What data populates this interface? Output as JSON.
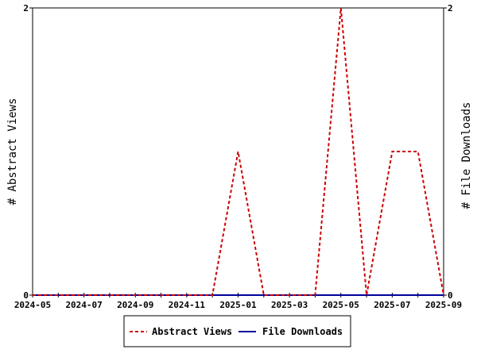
{
  "chart_data": {
    "type": "line",
    "x": [
      "2024-05",
      "2024-06",
      "2024-07",
      "2024-08",
      "2024-09",
      "2024-10",
      "2024-11",
      "2024-12",
      "2025-01",
      "2025-02",
      "2025-03",
      "2025-04",
      "2025-05",
      "2025-06",
      "2025-07",
      "2025-08",
      "2025-09"
    ],
    "x_tick_labels": [
      "2024-05",
      "2024-07",
      "2024-09",
      "2024-11",
      "2025-01",
      "2025-03",
      "2025-05",
      "2025-07",
      "2025-09"
    ],
    "series": [
      {
        "name": "Abstract Views",
        "axis": "left",
        "color": "#cc0000",
        "style": "dashed",
        "values": [
          0,
          0,
          0,
          0,
          0,
          0,
          0,
          0,
          1,
          0,
          0,
          0,
          2,
          0,
          1,
          1,
          0
        ]
      },
      {
        "name": "File Downloads",
        "axis": "right",
        "color": "#000099",
        "style": "solid",
        "values": [
          0,
          0,
          0,
          0,
          0,
          0,
          0,
          0,
          0,
          0,
          0,
          0,
          0,
          0,
          0,
          0,
          0
        ]
      }
    ],
    "ylabel_left": "# Abstract Views",
    "ylabel_right": "# File Downloads",
    "ylim_left": [
      0,
      2
    ],
    "ylim_right": [
      0,
      2
    ],
    "y_ticks_left": [
      "0",
      "2"
    ],
    "y_ticks_right": [
      "0",
      "2"
    ],
    "grid": false,
    "legend_position": "bottom"
  }
}
